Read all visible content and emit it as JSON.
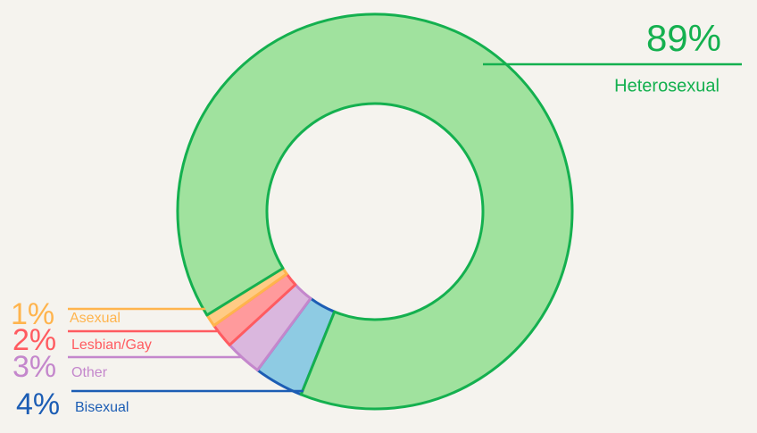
{
  "chart_data": {
    "type": "pie",
    "categories": [
      "Bisexual",
      "Other",
      "Lesbian/Gay",
      "Asexual",
      "Heterosexual"
    ],
    "values": [
      4,
      3,
      2,
      1,
      89
    ],
    "value_labels": [
      "4%",
      "3%",
      "2%",
      "1%",
      "89%"
    ],
    "colors": [
      "#8ecbe3",
      "#dab7de",
      "#ff9a9c",
      "#ffcb85",
      "#a0e29e"
    ],
    "stroke_colors": [
      "#1c5db4",
      "#c487cc",
      "#ff5b60",
      "#ffb44d",
      "#14b04f"
    ],
    "donut": true
  }
}
